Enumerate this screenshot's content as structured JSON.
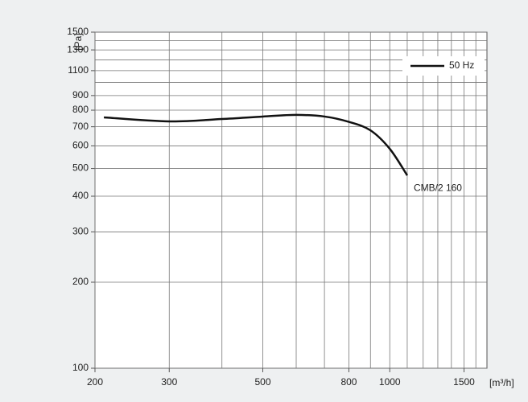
{
  "chart_data": {
    "type": "line",
    "log_x": true,
    "log_y": true,
    "x_label": "[m³/h]",
    "y_label": "[Pa]",
    "x": [
      210,
      300,
      400,
      500,
      600,
      700,
      800,
      900,
      1000,
      1100
    ],
    "series": [
      {
        "name": "50 Hz",
        "color": "#111111",
        "values": [
          755,
          731,
          745,
          760,
          770,
          760,
          728,
          680,
          586,
          473
        ]
      }
    ],
    "annotation": "CMB/2 160",
    "xlim": [
      200,
      1700
    ],
    "xticks": [
      200,
      300,
      500,
      800,
      1000,
      1500
    ],
    "xminor": [
      400,
      600,
      700,
      900,
      1100,
      1200,
      1300,
      1400,
      1600
    ],
    "ylim": [
      100,
      1500
    ],
    "yticks": [
      100,
      200,
      300,
      400,
      500,
      600,
      700,
      800,
      900,
      1100,
      1300,
      1500
    ],
    "yminor": [
      1000,
      1200,
      1400
    ],
    "grid": true,
    "legend": "top-right"
  }
}
